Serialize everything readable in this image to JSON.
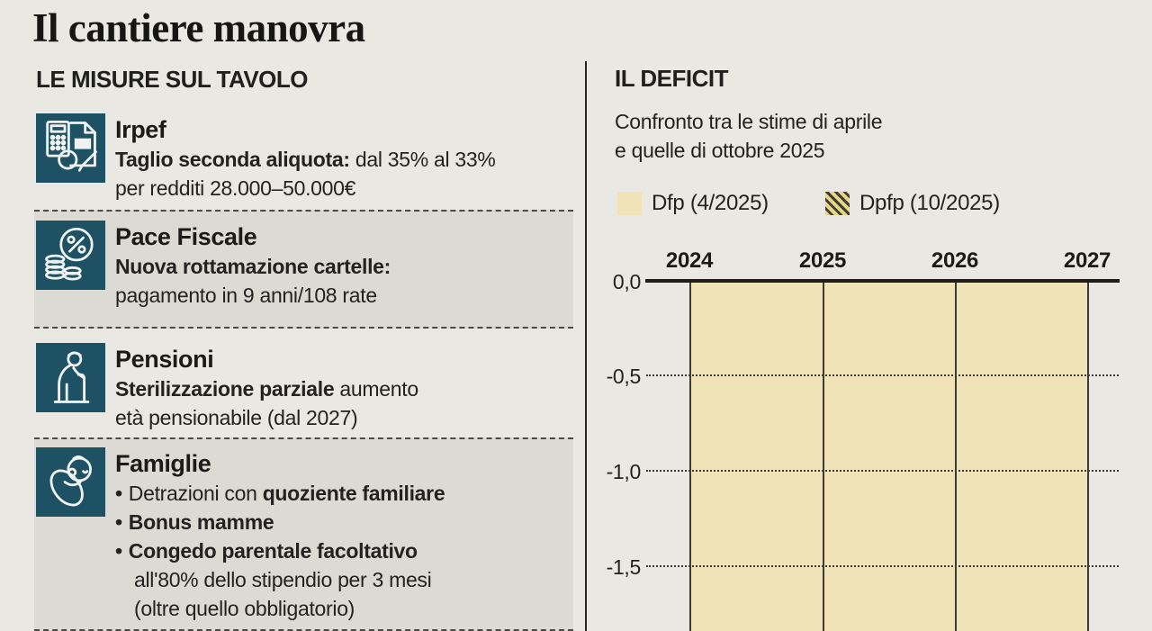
{
  "page": {
    "title": "Il cantiere manovra"
  },
  "left": {
    "section_title": "LE MISURE SUL TAVOLO",
    "measures": [
      {
        "title": "Irpef",
        "icon": "calculator-document-icon",
        "highlighted": false,
        "line1_bold": "Taglio seconda aliquota:",
        "line1_rest": " dal 35% al 33%",
        "line2": "per redditi 28.000–50.000€"
      },
      {
        "title": "Pace Fiscale",
        "icon": "percent-coins-icon",
        "highlighted": true,
        "line1_bold": "Nuova rottamazione cartelle:",
        "line1_rest": "",
        "line2": "pagamento in 9 anni/108 rate"
      },
      {
        "title": "Pensioni",
        "icon": "elderly-person-cane-icon",
        "highlighted": false,
        "line1_bold": "Sterilizzazione parziale",
        "line1_rest": " aumento",
        "line2": "età pensionabile (dal 2027)"
      },
      {
        "title": "Famiglie",
        "icon": "swaddled-baby-icon",
        "highlighted": true,
        "bullet1_pre": "Detrazioni con ",
        "bullet1_bold": "quoziente familiare",
        "bullet2_bold": "Bonus mamme",
        "bullet3_bold": "Congedo parentale facoltativo",
        "bullet3_line2": "all'80% dello stipendio per 3 mesi",
        "bullet3_line3": "(oltre quello obbligatorio)"
      }
    ]
  },
  "right": {
    "section_title": "IL DEFICIT",
    "subtitle_line1": "Confronto tra le stime di aprile",
    "subtitle_line2": "e quelle di ottobre 2025",
    "legend": [
      {
        "label": "Dfp (4/2025)",
        "style": "solid",
        "color": "#f0e3b7"
      },
      {
        "label": "Dpfp (10/2025)",
        "style": "hatched",
        "color": "#e8d78a"
      }
    ]
  },
  "chart_data": {
    "type": "bar",
    "title": "IL DEFICIT",
    "subtitle": "Confronto tra le stime di aprile e quelle di ottobre 2025",
    "categories": [
      "2024",
      "2025",
      "2026",
      "2027"
    ],
    "series": [
      {
        "name": "Dfp (4/2025)",
        "style": "solid-beige",
        "values": null
      },
      {
        "name": "Dpfp (10/2025)",
        "style": "hatched-yellow",
        "values": null
      }
    ],
    "y_axis": {
      "tick_labels": [
        "0,0",
        "-0,5",
        "-1,0",
        "-1,5"
      ],
      "visible_range": [
        -1.5,
        0
      ],
      "gridlines": "dotted"
    },
    "x_axis_position": "top",
    "values_visible": false,
    "note": "bars are truncated by the bottom edge of the screenshot; no numeric endpoints visible"
  },
  "colors": {
    "background": "#e9e8e2",
    "band": "#dcdbd3",
    "icon_teal": "#1d5163",
    "bar_beige": "#f0e3b7",
    "hatch_yellow": "#e8d78a",
    "ink": "#1e1e1c"
  }
}
